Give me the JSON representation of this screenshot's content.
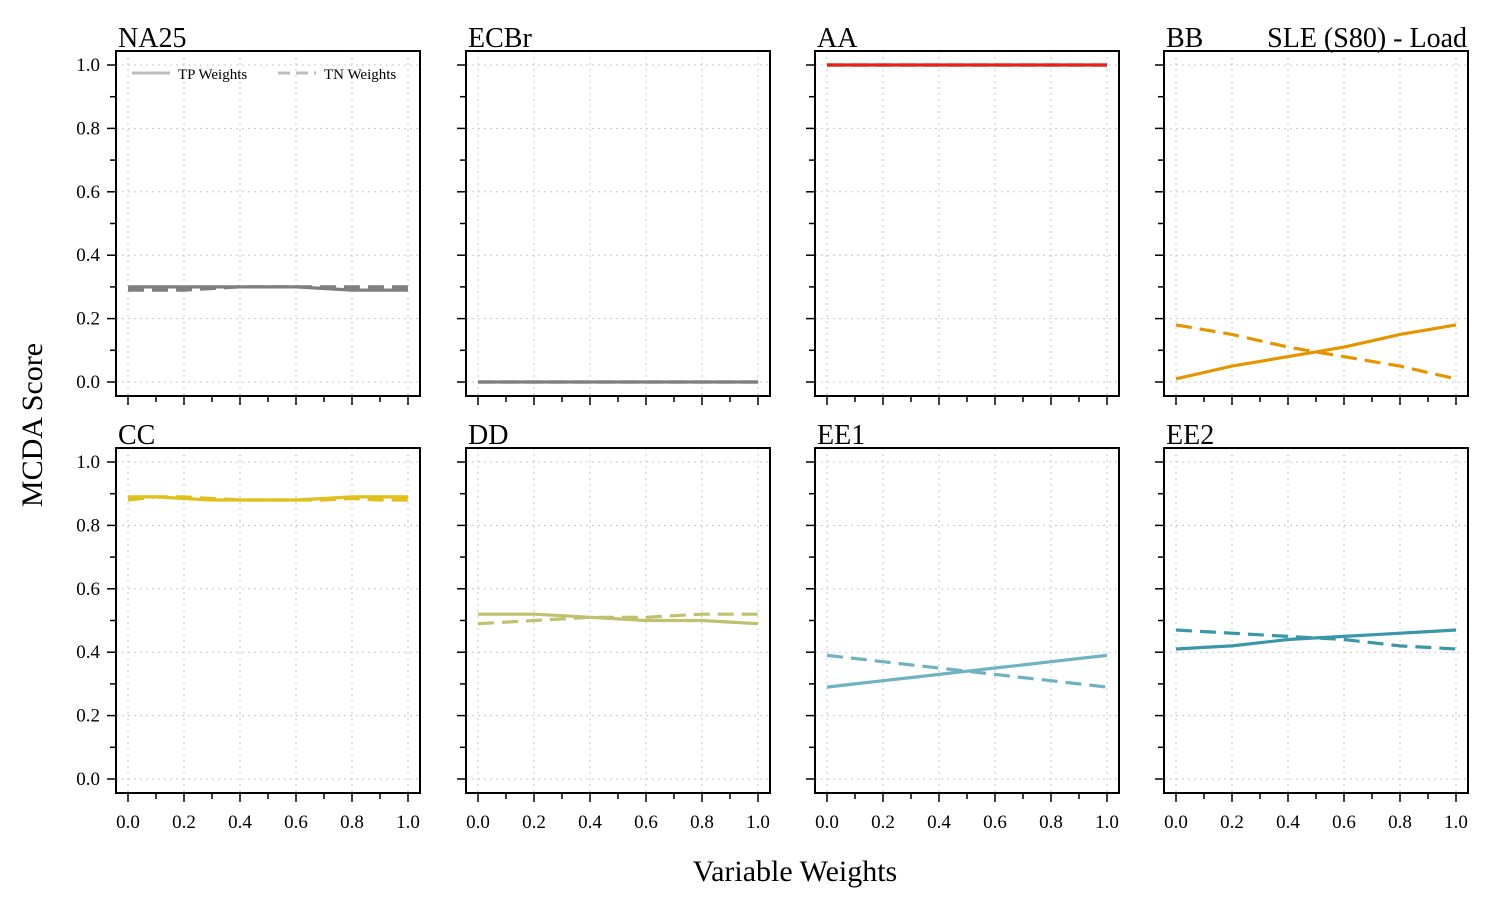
{
  "figure": {
    "title": "SLE (S80) - Load",
    "xlabel": "Variable Weights",
    "ylabel": "MCDA Score",
    "legend": {
      "position": "top-left of first panel",
      "entries": [
        {
          "label": "TP Weights",
          "dash": "solid"
        },
        {
          "label": "TN Weights",
          "dash": "dashed"
        }
      ],
      "color": "#bdbdbd"
    }
  },
  "chart_data": [
    {
      "type": "line",
      "title": "NA25",
      "color": "#7f7f7f",
      "x": [
        0,
        0.1,
        0.2,
        0.3,
        0.4,
        0.5,
        0.6,
        0.7,
        0.8,
        0.9,
        1.0
      ],
      "series": [
        {
          "name": "TP Weights",
          "values": [
            0.3,
            0.3,
            0.3,
            0.3,
            0.3,
            0.3,
            0.3,
            0.295,
            0.29,
            0.29,
            0.29
          ]
        },
        {
          "name": "TN Weights",
          "values": [
            0.29,
            0.29,
            0.29,
            0.295,
            0.3,
            0.3,
            0.3,
            0.3,
            0.3,
            0.3,
            0.3
          ]
        }
      ],
      "xlim": [
        0,
        1
      ],
      "ylim": [
        0,
        1
      ],
      "grid": true
    },
    {
      "type": "line",
      "title": "ECBr",
      "color": "#7f7f7f",
      "x": [
        0,
        0.1,
        0.2,
        0.3,
        0.4,
        0.5,
        0.6,
        0.7,
        0.8,
        0.9,
        1.0
      ],
      "series": [
        {
          "name": "TP Weights",
          "values": [
            0,
            0,
            0,
            0,
            0,
            0,
            0,
            0,
            0,
            0,
            0
          ]
        },
        {
          "name": "TN Weights",
          "values": [
            0,
            0,
            0,
            0,
            0,
            0,
            0,
            0,
            0,
            0,
            0
          ]
        }
      ],
      "xlim": [
        0,
        1
      ],
      "ylim": [
        0,
        1
      ],
      "grid": true
    },
    {
      "type": "line",
      "title": "AA",
      "color": "#e3201b",
      "x": [
        0,
        0.1,
        0.2,
        0.3,
        0.4,
        0.5,
        0.6,
        0.7,
        0.8,
        0.9,
        1.0
      ],
      "series": [
        {
          "name": "TP Weights",
          "values": [
            1,
            1,
            1,
            1,
            1,
            1,
            1,
            1,
            1,
            1,
            1
          ]
        },
        {
          "name": "TN Weights",
          "values": [
            1,
            1,
            1,
            1,
            1,
            1,
            1,
            1,
            1,
            1,
            1
          ]
        }
      ],
      "xlim": [
        0,
        1
      ],
      "ylim": [
        0,
        1
      ],
      "grid": true
    },
    {
      "type": "line",
      "title": "BB",
      "color": "#e69500",
      "x": [
        0,
        0.1,
        0.2,
        0.3,
        0.4,
        0.5,
        0.6,
        0.7,
        0.8,
        0.9,
        1.0
      ],
      "series": [
        {
          "name": "TP Weights",
          "values": [
            0.01,
            0.03,
            0.05,
            0.065,
            0.08,
            0.095,
            0.11,
            0.13,
            0.15,
            0.165,
            0.18
          ]
        },
        {
          "name": "TN Weights",
          "values": [
            0.18,
            0.165,
            0.15,
            0.13,
            0.11,
            0.095,
            0.08,
            0.065,
            0.05,
            0.03,
            0.01
          ]
        }
      ],
      "xlim": [
        0,
        1
      ],
      "ylim": [
        0,
        1
      ],
      "grid": true
    },
    {
      "type": "line",
      "title": "CC",
      "color": "#e1c01c",
      "x": [
        0,
        0.1,
        0.2,
        0.3,
        0.4,
        0.5,
        0.6,
        0.7,
        0.8,
        0.9,
        1.0
      ],
      "series": [
        {
          "name": "TP Weights",
          "values": [
            0.89,
            0.89,
            0.885,
            0.88,
            0.88,
            0.88,
            0.88,
            0.885,
            0.89,
            0.89,
            0.89
          ]
        },
        {
          "name": "TN Weights",
          "values": [
            0.88,
            0.89,
            0.89,
            0.885,
            0.88,
            0.88,
            0.88,
            0.88,
            0.885,
            0.88,
            0.88
          ]
        }
      ],
      "xlim": [
        0,
        1
      ],
      "ylim": [
        0,
        1
      ],
      "grid": true
    },
    {
      "type": "line",
      "title": "DD",
      "color": "#bfc16e",
      "x": [
        0,
        0.1,
        0.2,
        0.3,
        0.4,
        0.5,
        0.6,
        0.7,
        0.8,
        0.9,
        1.0
      ],
      "series": [
        {
          "name": "TP Weights",
          "values": [
            0.52,
            0.52,
            0.52,
            0.515,
            0.51,
            0.505,
            0.5,
            0.5,
            0.5,
            0.495,
            0.49
          ]
        },
        {
          "name": "TN Weights",
          "values": [
            0.49,
            0.495,
            0.5,
            0.505,
            0.51,
            0.51,
            0.51,
            0.515,
            0.52,
            0.52,
            0.52
          ]
        }
      ],
      "xlim": [
        0,
        1
      ],
      "ylim": [
        0,
        1
      ],
      "grid": true
    },
    {
      "type": "line",
      "title": "EE1",
      "color": "#6fb3c3",
      "x": [
        0,
        0.1,
        0.2,
        0.3,
        0.4,
        0.5,
        0.6,
        0.7,
        0.8,
        0.9,
        1.0
      ],
      "series": [
        {
          "name": "TP Weights",
          "values": [
            0.29,
            0.3,
            0.31,
            0.32,
            0.33,
            0.34,
            0.35,
            0.36,
            0.37,
            0.38,
            0.39
          ]
        },
        {
          "name": "TN Weights",
          "values": [
            0.39,
            0.38,
            0.37,
            0.36,
            0.35,
            0.34,
            0.33,
            0.32,
            0.31,
            0.3,
            0.29
          ]
        }
      ],
      "xlim": [
        0,
        1
      ],
      "ylim": [
        0,
        1
      ],
      "grid": true
    },
    {
      "type": "line",
      "title": "EE2",
      "color": "#3a97aa",
      "x": [
        0,
        0.1,
        0.2,
        0.3,
        0.4,
        0.5,
        0.6,
        0.7,
        0.8,
        0.9,
        1.0
      ],
      "series": [
        {
          "name": "TP Weights",
          "values": [
            0.41,
            0.415,
            0.42,
            0.43,
            0.44,
            0.445,
            0.45,
            0.455,
            0.46,
            0.465,
            0.47
          ]
        },
        {
          "name": "TN Weights",
          "values": [
            0.47,
            0.465,
            0.46,
            0.455,
            0.45,
            0.445,
            0.44,
            0.43,
            0.42,
            0.415,
            0.41
          ]
        }
      ],
      "xlim": [
        0,
        1
      ],
      "ylim": [
        0,
        1
      ],
      "grid": true
    }
  ],
  "axes": {
    "x_ticks": [
      "0.0",
      "0.2",
      "0.4",
      "0.6",
      "0.8",
      "1.0"
    ],
    "y_ticks": [
      "0.0",
      "0.2",
      "0.4",
      "0.6",
      "0.8",
      "1.0"
    ]
  }
}
